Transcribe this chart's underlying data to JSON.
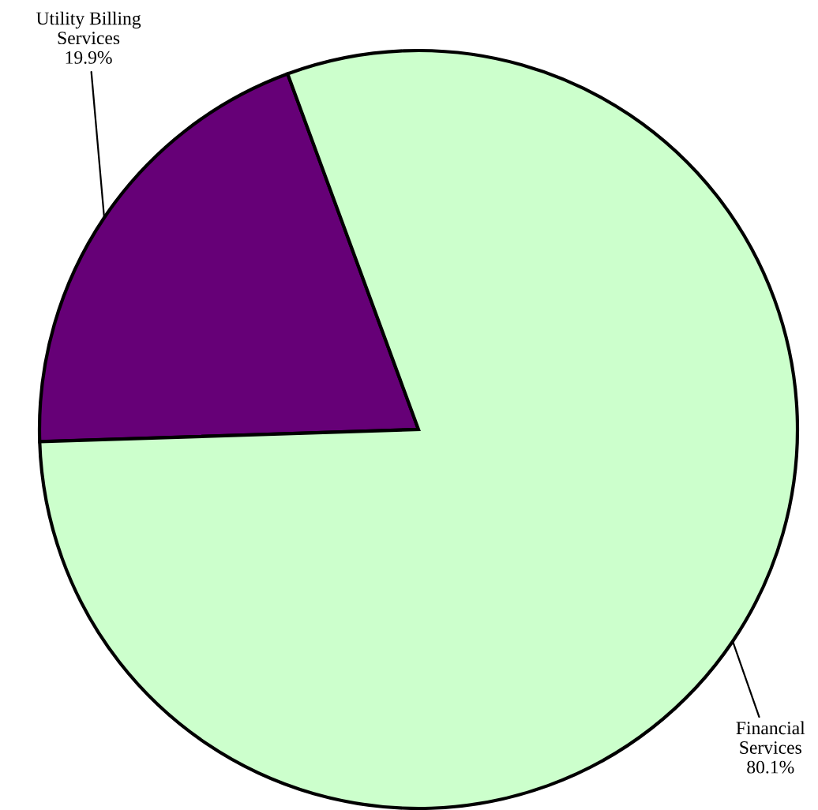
{
  "chart_data": {
    "type": "pie",
    "categories": [
      "Utility Billing\nServices",
      "Financial\nServices"
    ],
    "values": [
      19.9,
      80.1
    ],
    "colors": [
      "#660077",
      "#ccffcc"
    ],
    "value_labels": [
      "19.9%",
      "80.1%"
    ]
  }
}
